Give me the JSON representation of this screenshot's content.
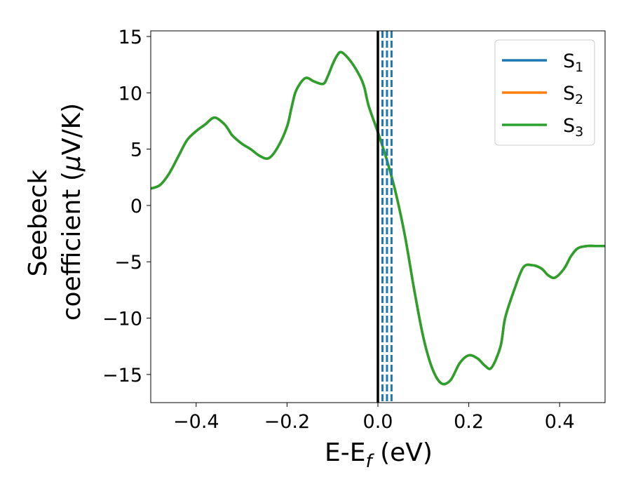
{
  "chart_data": {
    "type": "line",
    "title": "",
    "xlabel": {
      "main": "E-E",
      "sub": "f",
      "unit": " (eV)"
    },
    "ylabel": {
      "line1": "Seebeck",
      "line2_pre": "coefficient  (",
      "mu": "μ",
      "line2_post": "V/K)"
    },
    "xlim": [
      -0.5,
      0.5
    ],
    "ylim": [
      -17.5,
      15.5
    ],
    "xticks": [
      -0.4,
      -0.2,
      0.0,
      0.2,
      0.4
    ],
    "xtick_labels": [
      "−0.4",
      "−0.2",
      "0.0",
      "0.2",
      "0.4"
    ],
    "yticks": [
      -15,
      -10,
      -5,
      0,
      5,
      10,
      15
    ],
    "ytick_labels": [
      "−15",
      "−10",
      "−5",
      "0",
      "5",
      "10",
      "15"
    ],
    "grid": false,
    "legend_position": "top-right",
    "fermi_line_x": 0.0,
    "dashed_lines_x": [
      0.01,
      0.02,
      0.03
    ],
    "series": [
      {
        "name": "S",
        "sub": "1",
        "color": "#1f77b4"
      },
      {
        "name": "S",
        "sub": "2",
        "color": "#ff7f0e"
      },
      {
        "name": "S",
        "sub": "3",
        "color": "#2ca02c"
      }
    ],
    "curve": {
      "x": [
        -0.5,
        -0.48,
        -0.46,
        -0.44,
        -0.42,
        -0.4,
        -0.38,
        -0.36,
        -0.34,
        -0.33,
        -0.32,
        -0.3,
        -0.28,
        -0.26,
        -0.24,
        -0.22,
        -0.2,
        -0.19,
        -0.18,
        -0.16,
        -0.14,
        -0.12,
        -0.11,
        -0.1,
        -0.09,
        -0.08,
        -0.06,
        -0.04,
        -0.03,
        -0.02,
        0.0,
        0.02,
        0.04,
        0.06,
        0.08,
        0.1,
        0.12,
        0.14,
        0.16,
        0.18,
        0.2,
        0.22,
        0.235,
        0.25,
        0.27,
        0.28,
        0.3,
        0.32,
        0.34,
        0.36,
        0.375,
        0.39,
        0.41,
        0.425,
        0.44,
        0.46,
        0.48,
        0.5
      ],
      "y": [
        1.5,
        1.8,
        2.8,
        4.3,
        5.8,
        6.6,
        7.2,
        7.8,
        7.3,
        6.8,
        6.2,
        5.5,
        5.0,
        4.4,
        4.2,
        5.2,
        7.0,
        8.7,
        10.2,
        11.3,
        11.0,
        10.8,
        11.5,
        12.5,
        13.3,
        13.6,
        12.8,
        11.5,
        10.5,
        8.8,
        6.5,
        4.0,
        1.0,
        -2.8,
        -7.5,
        -11.7,
        -14.5,
        -15.8,
        -15.5,
        -14.0,
        -13.3,
        -13.6,
        -14.2,
        -14.4,
        -12.5,
        -10.0,
        -7.5,
        -5.5,
        -5.3,
        -5.6,
        -6.2,
        -6.4,
        -5.6,
        -4.5,
        -3.8,
        -3.6,
        -3.6,
        -3.6
      ]
    }
  }
}
